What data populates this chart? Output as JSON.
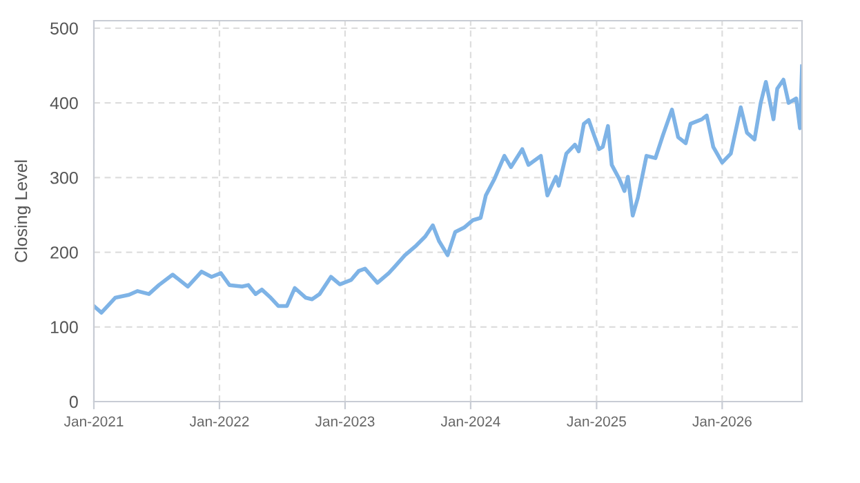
{
  "chart_data": {
    "type": "line",
    "ylabel": "Closing Level",
    "x": [
      "2021-01-01",
      "2021-01-23",
      "2021-03-04",
      "2021-04-13",
      "2021-05-08",
      "2021-06-10",
      "2021-07-09",
      "2021-08-18",
      "2021-10-01",
      "2021-11-10",
      "2021-12-09",
      "2022-01-05",
      "2022-01-30",
      "2022-03-08",
      "2022-03-26",
      "2022-04-16",
      "2022-05-04",
      "2022-05-30",
      "2022-06-21",
      "2022-07-16",
      "2022-08-08",
      "2022-09-09",
      "2022-09-27",
      "2022-10-19",
      "2022-11-21",
      "2022-12-17",
      "2023-01-19",
      "2023-02-10",
      "2023-02-28",
      "2023-04-05",
      "2023-05-08",
      "2023-05-26",
      "2023-06-24",
      "2023-07-27",
      "2023-08-22",
      "2023-09-13",
      "2023-10-01",
      "2023-10-26",
      "2023-11-17",
      "2023-12-13",
      "2024-01-08",
      "2024-01-30",
      "2024-02-14",
      "2024-03-10",
      "2024-04-08",
      "2024-04-27",
      "2024-05-30",
      "2024-06-17",
      "2024-07-23",
      "2024-08-11",
      "2024-09-05",
      "2024-09-13",
      "2024-10-05",
      "2024-10-30",
      "2024-11-10",
      "2024-11-25",
      "2024-12-09",
      "2025-01-08",
      "2025-01-19",
      "2025-02-03",
      "2025-02-14",
      "2025-03-08",
      "2025-03-23",
      "2025-04-02",
      "2025-04-16",
      "2025-05-01",
      "2025-05-26",
      "2025-06-21",
      "2025-07-13",
      "2025-08-08",
      "2025-08-26",
      "2025-09-17",
      "2025-10-01",
      "2025-11-03",
      "2025-11-17",
      "2025-12-06",
      "2026-01-01",
      "2026-01-26",
      "2026-02-24",
      "2026-03-14",
      "2026-04-05",
      "2026-04-23",
      "2026-05-08",
      "2026-05-30",
      "2026-06-10",
      "2026-06-28",
      "2026-07-13",
      "2026-08-04",
      "2026-08-15",
      "2026-08-21"
    ],
    "series": [
      {
        "color": "#7eb3e6",
        "values": [
          128,
          119,
          139,
          143,
          148,
          144,
          156,
          170,
          154,
          174,
          167,
          172,
          156,
          154,
          156,
          144,
          150,
          139,
          128,
          128,
          152,
          139,
          137,
          144,
          167,
          157,
          163,
          175,
          178,
          159,
          172,
          181,
          196,
          209,
          221,
          236,
          215,
          196,
          227,
          233,
          243,
          246,
          276,
          298,
          329,
          314,
          338,
          317,
          329,
          276,
          301,
          289,
          332,
          344,
          335,
          372,
          377,
          338,
          341,
          369,
          317,
          298,
          282,
          301,
          249,
          273,
          329,
          326,
          357,
          391,
          354,
          346,
          372,
          378,
          383,
          341,
          320,
          332,
          394,
          360,
          351,
          400,
          428,
          378,
          419,
          431,
          400,
          406,
          366,
          449
        ]
      }
    ],
    "xlim": [
      "2021-01-01",
      "2026-08-21"
    ],
    "xticks": [
      {
        "value": "2021-01",
        "label": "Jan-2021"
      },
      {
        "value": "2022-01",
        "label": "Jan-2022"
      },
      {
        "value": "2023-01",
        "label": "Jan-2023"
      },
      {
        "value": "2024-01",
        "label": "Jan-2024"
      },
      {
        "value": "2025-01",
        "label": "Jan-2025"
      },
      {
        "value": "2026-01",
        "label": "Jan-2026"
      }
    ],
    "ylim": [
      0,
      510
    ],
    "yticks": [
      0,
      100,
      200,
      300,
      400,
      500
    ],
    "grid": true,
    "marker": "none",
    "line_style": "solid"
  }
}
